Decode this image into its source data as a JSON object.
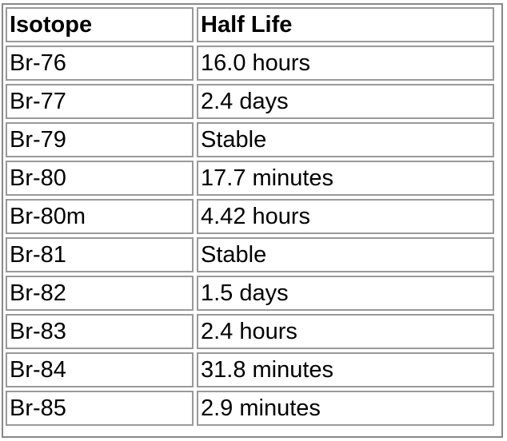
{
  "table": {
    "headers": [
      "Isotope",
      "Half Life"
    ],
    "rows": [
      [
        "Br-76",
        "16.0 hours"
      ],
      [
        "Br-77",
        "2.4 days"
      ],
      [
        "Br-79",
        "Stable"
      ],
      [
        "Br-80",
        "17.7 minutes"
      ],
      [
        "Br-80m",
        "4.42 hours"
      ],
      [
        "Br-81",
        "Stable"
      ],
      [
        "Br-82",
        "1.5 days"
      ],
      [
        "Br-83",
        "2.4 hours"
      ],
      [
        "Br-84",
        "31.8 minutes"
      ],
      [
        "Br-85",
        "2.9 minutes"
      ]
    ]
  }
}
